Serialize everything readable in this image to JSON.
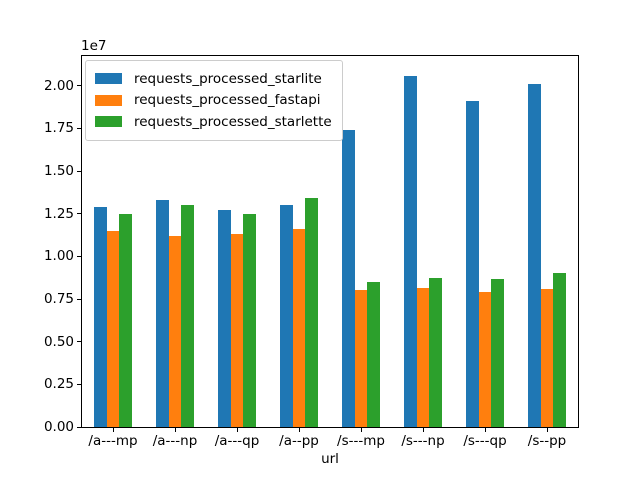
{
  "chart_data": {
    "type": "bar",
    "title": "",
    "xlabel": "url",
    "ylabel": "",
    "offset_text": "1e7",
    "grid": false,
    "legend_position": "upper left",
    "categories": [
      "/a---mp",
      "/a---np",
      "/a---qp",
      "/a--pp",
      "/s---mp",
      "/s---np",
      "/s---qp",
      "/s--pp"
    ],
    "series": [
      {
        "name": "requests_processed_starlite",
        "color": "#1f77b4",
        "values": [
          12900000,
          13300000,
          12700000,
          13000000,
          17400000,
          20600000,
          19100000,
          20100000
        ]
      },
      {
        "name": "requests_processed_fastapi",
        "color": "#ff7f0e",
        "values": [
          11500000,
          11200000,
          11300000,
          11600000,
          8050000,
          8150000,
          7900000,
          8100000
        ]
      },
      {
        "name": "requests_processed_starlette",
        "color": "#2ca02c",
        "values": [
          12500000,
          13000000,
          12500000,
          13400000,
          8500000,
          8750000,
          8700000,
          9000000
        ]
      }
    ],
    "ylim": [
      0,
      21750000
    ],
    "yticks": {
      "values": [
        0,
        2500000,
        5000000,
        7500000,
        10000000,
        12500000,
        15000000,
        17500000,
        20000000
      ],
      "labels": [
        "0.00",
        "0.25",
        "0.50",
        "0.75",
        "1.00",
        "1.25",
        "1.50",
        "1.75",
        "2.00"
      ]
    }
  }
}
